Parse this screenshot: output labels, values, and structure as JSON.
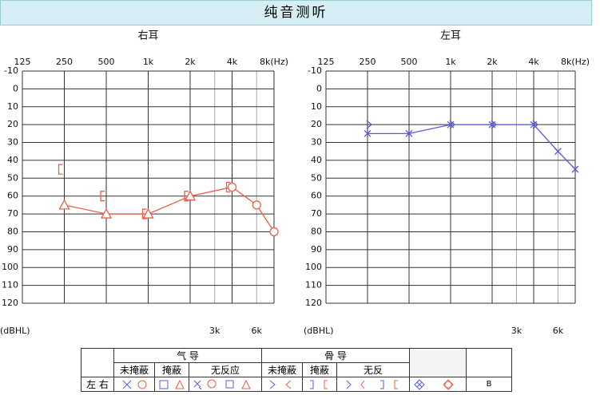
{
  "header": {
    "title": "纯音测听"
  },
  "chart_data": [
    {
      "type": "line",
      "title": "右耳",
      "y_label": "(dBHL)",
      "xscale": "log",
      "y_inverted": true,
      "grid": true,
      "xlim": [
        125,
        8000
      ],
      "ylim": [
        -10,
        120
      ],
      "xticks": [
        125,
        250,
        500,
        {
          "value": 1000,
          "label": "1k"
        },
        {
          "value": 2000,
          "label": "2k"
        },
        {
          "value": 4000,
          "label": "4k"
        },
        {
          "value": 8000,
          "label": "8k(Hz)"
        }
      ],
      "xticks2": [
        {
          "value": 3000,
          "label": "3k"
        },
        {
          "value": 6000,
          "label": "6k"
        }
      ],
      "yticks": [
        -10,
        0,
        10,
        20,
        30,
        40,
        50,
        60,
        70,
        80,
        90,
        100,
        110,
        120
      ],
      "series": [
        {
          "color": "#e8604a",
          "line": true,
          "x": [
            250,
            500,
            1000,
            2000,
            4000,
            6000,
            8000
          ],
          "values": [
            65,
            70,
            70,
            60,
            55,
            65,
            80
          ],
          "markers": [
            "triangle",
            "triangle",
            "triangle",
            "triangle",
            "circle",
            "circle",
            "circle"
          ]
        },
        {
          "color": "#e8604a",
          "line": false,
          "x": [
            250,
            500,
            1000,
            2000,
            4000
          ],
          "values": [
            45,
            60,
            70,
            60,
            55
          ],
          "markers": [
            "bracket",
            "bracket",
            "bracket",
            "bracket",
            "bracket"
          ]
        }
      ]
    },
    {
      "type": "line",
      "title": "左耳",
      "y_label": "(dBHL)",
      "xscale": "log",
      "y_inverted": true,
      "grid": true,
      "xlim": [
        125,
        8000
      ],
      "ylim": [
        -10,
        120
      ],
      "xticks": [
        125,
        250,
        500,
        {
          "value": 1000,
          "label": "1k"
        },
        {
          "value": 2000,
          "label": "2k"
        },
        {
          "value": 4000,
          "label": "4k"
        },
        {
          "value": 8000,
          "label": "8k(Hz)"
        }
      ],
      "xticks2": [
        {
          "value": 3000,
          "label": "3k"
        },
        {
          "value": 6000,
          "label": "6k"
        }
      ],
      "yticks": [
        -10,
        0,
        10,
        20,
        30,
        40,
        50,
        60,
        70,
        80,
        90,
        100,
        110,
        120
      ],
      "series": [
        {
          "color": "#5a5ae0",
          "line": true,
          "x": [
            250,
            500,
            1000,
            2000,
            4000,
            6000,
            8000
          ],
          "values": [
            25,
            25,
            20,
            20,
            20,
            35,
            45
          ],
          "markers": [
            "cross",
            "cross",
            "cross",
            "cross",
            "cross",
            "cross",
            "cross"
          ]
        },
        {
          "color": "#5a5ae0",
          "line": false,
          "x": [
            250,
            1000,
            2000,
            4000
          ],
          "values": [
            20,
            20,
            20,
            20
          ],
          "markers": [
            "angle",
            "angle",
            "angle",
            "angle"
          ]
        }
      ]
    }
  ],
  "legend_table": {
    "groups": [
      "气 导",
      "骨 导"
    ],
    "subheads": [
      "未掩蔽",
      "掩蔽",
      "无反应",
      "未掩蔽",
      "掩蔽",
      "无反"
    ],
    "row_labels": [
      "左",
      "右"
    ],
    "last": "B"
  }
}
